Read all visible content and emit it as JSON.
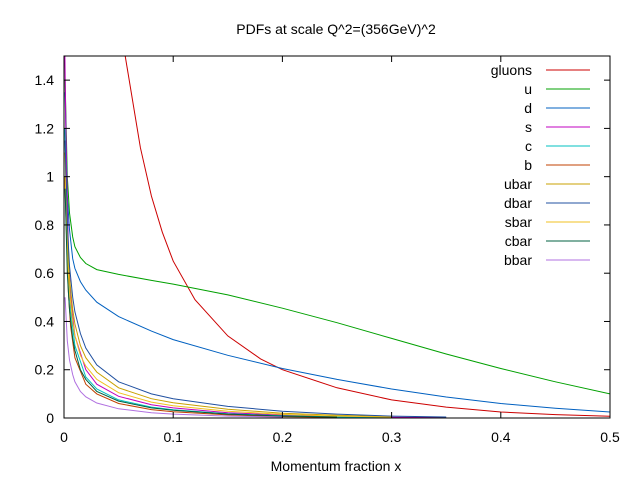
{
  "chart_data": {
    "type": "line",
    "title": "PDFs at scale Q^2=(356GeV)^2",
    "xlabel": "Momentum fraction x",
    "ylabel": "",
    "xlim": [
      0,
      0.5
    ],
    "ylim": [
      0,
      1.5
    ],
    "xticks": [
      "0",
      "0.1",
      "0.2",
      "0.3",
      "0.4",
      "0.5"
    ],
    "xtick_values": [
      0,
      0.1,
      0.2,
      0.3,
      0.4,
      0.5
    ],
    "yticks": [
      "0",
      "0.2",
      "0.4",
      "0.6",
      "0.8",
      "1",
      "1.2",
      "1.4"
    ],
    "ytick_values": [
      0,
      0.2,
      0.4,
      0.6,
      0.8,
      1.0,
      1.2,
      1.4
    ],
    "legend_position": "top-right",
    "series": [
      {
        "name": "gluons",
        "color": "#cc0000",
        "x": [
          0.056,
          0.07,
          0.08,
          0.09,
          0.1,
          0.12,
          0.15,
          0.18,
          0.2,
          0.25,
          0.3,
          0.35,
          0.4,
          0.45,
          0.5
        ],
        "y": [
          1.5,
          1.12,
          0.92,
          0.77,
          0.65,
          0.49,
          0.34,
          0.245,
          0.2,
          0.125,
          0.075,
          0.045,
          0.025,
          0.014,
          0.007
        ]
      },
      {
        "name": "u",
        "color": "#00a000",
        "x": [
          0.001,
          0.003,
          0.005,
          0.008,
          0.01,
          0.015,
          0.02,
          0.03,
          0.05,
          0.08,
          0.1,
          0.15,
          0.2,
          0.25,
          0.3,
          0.35,
          0.4,
          0.45,
          0.5
        ],
        "y": [
          1.4,
          1.0,
          0.85,
          0.75,
          0.71,
          0.665,
          0.64,
          0.615,
          0.595,
          0.57,
          0.555,
          0.51,
          0.455,
          0.395,
          0.33,
          0.265,
          0.205,
          0.15,
          0.1
        ]
      },
      {
        "name": "d",
        "color": "#0060c0",
        "x": [
          0.001,
          0.003,
          0.005,
          0.008,
          0.01,
          0.015,
          0.02,
          0.03,
          0.05,
          0.08,
          0.1,
          0.15,
          0.2,
          0.25,
          0.3,
          0.35,
          0.4,
          0.45,
          0.5
        ],
        "y": [
          1.35,
          0.92,
          0.78,
          0.66,
          0.62,
          0.565,
          0.53,
          0.48,
          0.42,
          0.36,
          0.325,
          0.26,
          0.205,
          0.16,
          0.12,
          0.087,
          0.06,
          0.04,
          0.025
        ]
      },
      {
        "name": "s",
        "color": "#c000c0",
        "x": [
          0.0008,
          0.002,
          0.004,
          0.006,
          0.01,
          0.02,
          0.03,
          0.05,
          0.08,
          0.1,
          0.15,
          0.2,
          0.25,
          0.3,
          0.35
        ],
        "y": [
          1.5,
          1.1,
          0.7,
          0.5,
          0.34,
          0.2,
          0.14,
          0.09,
          0.055,
          0.042,
          0.022,
          0.012,
          0.006,
          0.003,
          0.0015
        ]
      },
      {
        "name": "c",
        "color": "#00c0c0",
        "x": [
          0.0008,
          0.002,
          0.004,
          0.006,
          0.01,
          0.02,
          0.03,
          0.05,
          0.08,
          0.1,
          0.15,
          0.2,
          0.25,
          0.3
        ],
        "y": [
          1.2,
          0.95,
          0.62,
          0.45,
          0.3,
          0.17,
          0.12,
          0.075,
          0.045,
          0.034,
          0.018,
          0.009,
          0.004,
          0.002
        ]
      },
      {
        "name": "b",
        "color": "#c04000",
        "x": [
          0.0008,
          0.002,
          0.004,
          0.006,
          0.01,
          0.02,
          0.03,
          0.05,
          0.08,
          0.1,
          0.15,
          0.2,
          0.25
        ],
        "y": [
          1.0,
          0.8,
          0.52,
          0.38,
          0.25,
          0.14,
          0.1,
          0.06,
          0.035,
          0.026,
          0.013,
          0.006,
          0.003
        ]
      },
      {
        "name": "ubar",
        "color": "#c8a000",
        "x": [
          0.001,
          0.003,
          0.005,
          0.008,
          0.01,
          0.015,
          0.02,
          0.03,
          0.05,
          0.08,
          0.1,
          0.15,
          0.2,
          0.25,
          0.3
        ],
        "y": [
          1.1,
          0.75,
          0.58,
          0.45,
          0.39,
          0.3,
          0.25,
          0.19,
          0.125,
          0.08,
          0.063,
          0.036,
          0.02,
          0.011,
          0.005
        ]
      },
      {
        "name": "dbar",
        "color": "#2050a0",
        "x": [
          0.001,
          0.003,
          0.005,
          0.008,
          0.01,
          0.015,
          0.02,
          0.03,
          0.05,
          0.08,
          0.1,
          0.15,
          0.2,
          0.25,
          0.3,
          0.35
        ],
        "y": [
          1.15,
          0.8,
          0.63,
          0.5,
          0.44,
          0.35,
          0.29,
          0.22,
          0.15,
          0.1,
          0.08,
          0.048,
          0.028,
          0.016,
          0.008,
          0.004
        ]
      },
      {
        "name": "sbar",
        "color": "#f0c020",
        "x": [
          0.001,
          0.003,
          0.005,
          0.008,
          0.01,
          0.015,
          0.02,
          0.03,
          0.05,
          0.08,
          0.1,
          0.15,
          0.2,
          0.25,
          0.3
        ],
        "y": [
          1.0,
          0.68,
          0.52,
          0.4,
          0.34,
          0.26,
          0.215,
          0.16,
          0.105,
          0.066,
          0.051,
          0.028,
          0.015,
          0.008,
          0.004
        ]
      },
      {
        "name": "cbar",
        "color": "#006040",
        "x": [
          0.001,
          0.003,
          0.005,
          0.008,
          0.01,
          0.015,
          0.02,
          0.03,
          0.05,
          0.08,
          0.1,
          0.15,
          0.2,
          0.25
        ],
        "y": [
          0.95,
          0.6,
          0.45,
          0.33,
          0.28,
          0.2,
          0.16,
          0.11,
          0.07,
          0.042,
          0.032,
          0.016,
          0.008,
          0.004
        ]
      },
      {
        "name": "bbar",
        "color": "#b070e0",
        "x": [
          0.001,
          0.003,
          0.005,
          0.008,
          0.01,
          0.015,
          0.02,
          0.03,
          0.05,
          0.08,
          0.1,
          0.15,
          0.2
        ],
        "y": [
          0.5,
          0.32,
          0.24,
          0.18,
          0.15,
          0.11,
          0.088,
          0.062,
          0.038,
          0.022,
          0.016,
          0.008,
          0.004
        ]
      }
    ]
  }
}
